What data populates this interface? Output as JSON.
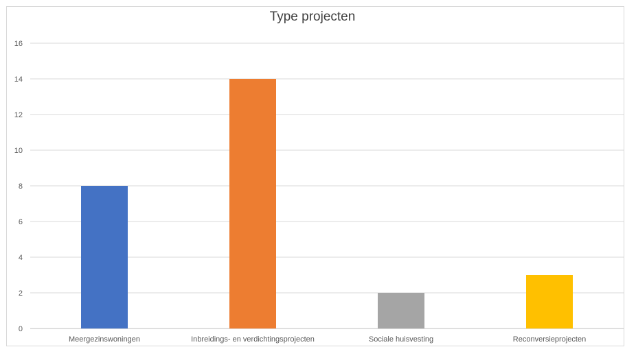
{
  "chart_data": {
    "type": "bar",
    "title": "Type projecten",
    "categories": [
      "Meergezinswoningen",
      "Inbreidings- en verdichtingsprojecten",
      "Sociale huisvesting",
      "Reconversieprojecten"
    ],
    "values": [
      8,
      14,
      2,
      3
    ],
    "colors": [
      "#4472C4",
      "#ED7D31",
      "#A5A5A5",
      "#FFC000"
    ],
    "ylim": [
      0,
      16
    ],
    "yticks": [
      0,
      2,
      4,
      6,
      8,
      10,
      12,
      14,
      16
    ],
    "grid": true,
    "legend": false
  }
}
